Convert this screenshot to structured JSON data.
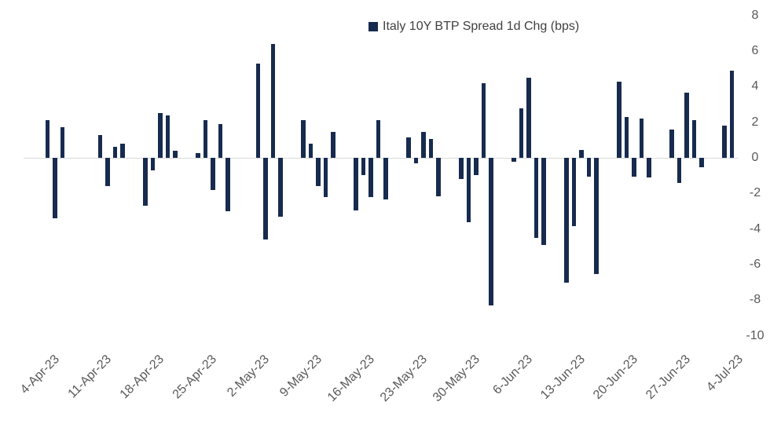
{
  "chart_data": {
    "type": "bar",
    "title": "",
    "legend": "Italy 10Y BTP Spread 1d Chg (bps)",
    "xlabel": "",
    "ylabel": "",
    "unit": "bps",
    "grid": false,
    "legend_position": "top",
    "ylim": [
      -10,
      8
    ],
    "y_ticks": [
      8,
      6,
      4,
      2,
      0,
      -2,
      -4,
      -6,
      -8,
      -10
    ],
    "x_start": "4-Apr-23",
    "x_ticks": [
      "4-Apr-23",
      "11-Apr-23",
      "18-Apr-23",
      "25-Apr-23",
      "2-May-23",
      "9-May-23",
      "16-May-23",
      "23-May-23",
      "30-May-23",
      "6-Jun-23",
      "13-Jun-23",
      "20-Jun-23",
      "27-Jun-23",
      "4-Jul-23"
    ],
    "colors": {
      "bar": "#172B4F",
      "axis_line": "#D9D9D9",
      "tick_label": "#595959",
      "legend_text": "#404040"
    },
    "points": [
      {
        "d": "4-Apr-23",
        "v": 2.1
      },
      {
        "d": "5-Apr-23",
        "v": -3.4
      },
      {
        "d": "6-Apr-23",
        "v": 1.7
      },
      {
        "d": "11-Apr-23",
        "v": 1.3
      },
      {
        "d": "12-Apr-23",
        "v": -1.6
      },
      {
        "d": "13-Apr-23",
        "v": 0.6
      },
      {
        "d": "14-Apr-23",
        "v": 0.8
      },
      {
        "d": "17-Apr-23",
        "v": -2.7
      },
      {
        "d": "18-Apr-23",
        "v": -0.7
      },
      {
        "d": "19-Apr-23",
        "v": 2.5
      },
      {
        "d": "20-Apr-23",
        "v": 2.4
      },
      {
        "d": "21-Apr-23",
        "v": 0.4
      },
      {
        "d": "24-Apr-23",
        "v": 0.25
      },
      {
        "d": "25-Apr-23",
        "v": 2.1
      },
      {
        "d": "26-Apr-23",
        "v": -1.8
      },
      {
        "d": "27-Apr-23",
        "v": 1.9
      },
      {
        "d": "28-Apr-23",
        "v": -3.0
      },
      {
        "d": "2-May-23",
        "v": 5.3
      },
      {
        "d": "3-May-23",
        "v": -4.6
      },
      {
        "d": "4-May-23",
        "v": 6.4
      },
      {
        "d": "5-May-23",
        "v": -3.3
      },
      {
        "d": "8-May-23",
        "v": 2.1
      },
      {
        "d": "9-May-23",
        "v": 0.8
      },
      {
        "d": "10-May-23",
        "v": -1.6
      },
      {
        "d": "11-May-23",
        "v": -2.2
      },
      {
        "d": "12-May-23",
        "v": 1.45
      },
      {
        "d": "15-May-23",
        "v": -2.95
      },
      {
        "d": "16-May-23",
        "v": -0.95
      },
      {
        "d": "17-May-23",
        "v": -2.2
      },
      {
        "d": "18-May-23",
        "v": 2.1
      },
      {
        "d": "19-May-23",
        "v": -2.35
      },
      {
        "d": "22-May-23",
        "v": 1.15
      },
      {
        "d": "23-May-23",
        "v": -0.3
      },
      {
        "d": "24-May-23",
        "v": 1.45
      },
      {
        "d": "25-May-23",
        "v": 1.05
      },
      {
        "d": "26-May-23",
        "v": -2.15
      },
      {
        "d": "29-May-23",
        "v": -1.2
      },
      {
        "d": "30-May-23",
        "v": -3.6
      },
      {
        "d": "31-May-23",
        "v": -0.95
      },
      {
        "d": "1-Jun-23",
        "v": 4.2
      },
      {
        "d": "2-Jun-23",
        "v": -8.3
      },
      {
        "d": "5-Jun-23",
        "v": -0.2
      },
      {
        "d": "6-Jun-23",
        "v": 2.8
      },
      {
        "d": "7-Jun-23",
        "v": 4.5
      },
      {
        "d": "8-Jun-23",
        "v": -4.5
      },
      {
        "d": "9-Jun-23",
        "v": -4.9
      },
      {
        "d": "12-Jun-23",
        "v": -7.0
      },
      {
        "d": "13-Jun-23",
        "v": -3.85
      },
      {
        "d": "14-Jun-23",
        "v": 0.45
      },
      {
        "d": "15-Jun-23",
        "v": -1.05
      },
      {
        "d": "16-Jun-23",
        "v": -6.55
      },
      {
        "d": "19-Jun-23",
        "v": 4.3
      },
      {
        "d": "20-Jun-23",
        "v": 2.3
      },
      {
        "d": "21-Jun-23",
        "v": -1.05
      },
      {
        "d": "22-Jun-23",
        "v": 2.2
      },
      {
        "d": "23-Jun-23",
        "v": -1.1
      },
      {
        "d": "26-Jun-23",
        "v": 1.6
      },
      {
        "d": "27-Jun-23",
        "v": -1.4
      },
      {
        "d": "28-Jun-23",
        "v": 3.65
      },
      {
        "d": "29-Jun-23",
        "v": 2.1
      },
      {
        "d": "30-Jun-23",
        "v": -0.55
      },
      {
        "d": "3-Jul-23",
        "v": 1.8
      },
      {
        "d": "4-Jul-23",
        "v": 4.9
      }
    ]
  }
}
